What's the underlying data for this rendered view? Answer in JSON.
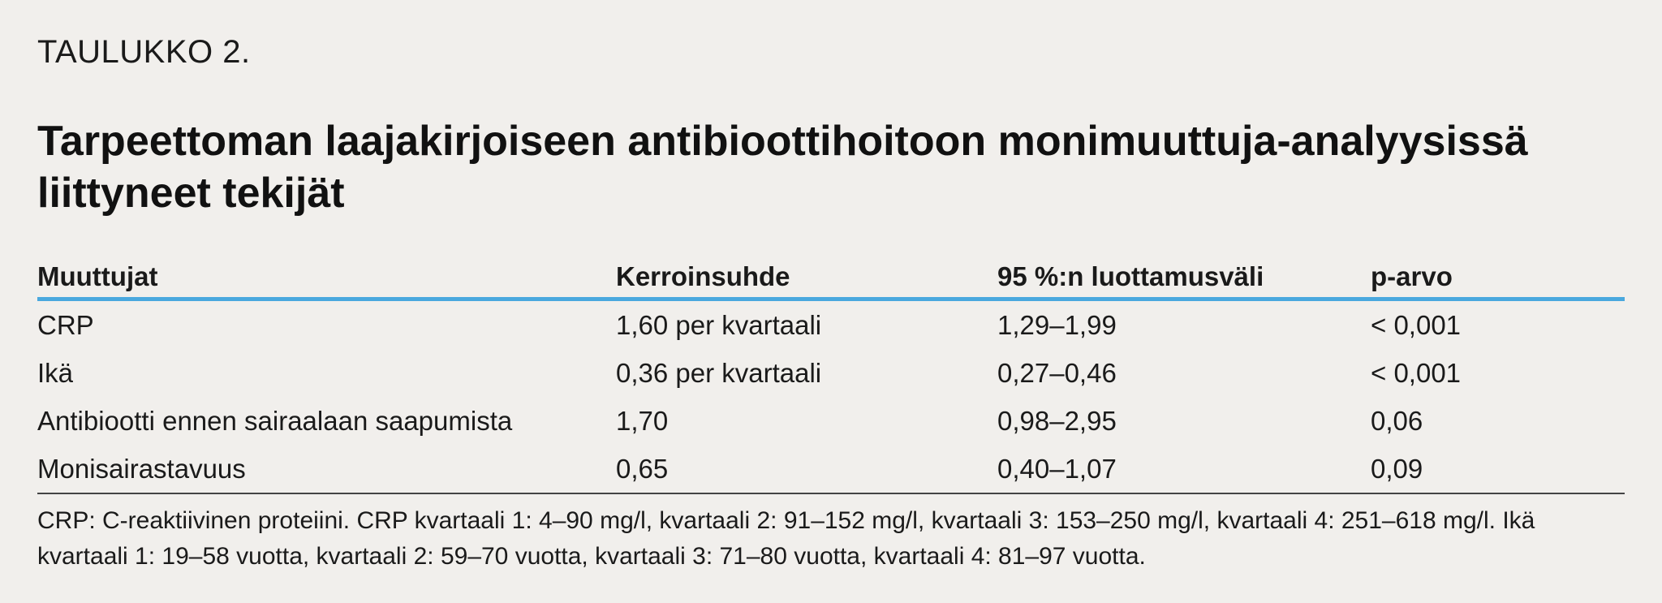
{
  "table_label": "TAULUKKO 2.",
  "title": "Tarpeettoman laajakirjoiseen antibioottihoitoon monimuuttuja-analyysissä liittyneet tekijät",
  "columns": [
    "Muuttujat",
    "Kerroinsuhde",
    "95 %:n luottamusväli",
    "p-arvo"
  ],
  "rows": [
    [
      "CRP",
      "1,60 per kvartaali",
      "1,29–1,99",
      "< 0,001"
    ],
    [
      "Ikä",
      "0,36 per kvartaali",
      "0,27–0,46",
      "< 0,001"
    ],
    [
      "Antibiootti ennen sairaalaan saapumista",
      "1,70",
      "0,98–2,95",
      "0,06"
    ],
    [
      "Monisairastavuus",
      "0,65",
      "0,40–1,07",
      "0,09"
    ]
  ],
  "footnote": "CRP: C-reaktiivinen proteiini. CRP kvartaali 1: 4–90 mg/l, kvartaali 2: 91–152 mg/l, kvartaali 3: 153–250 mg/l, kvartaali 4: 251–618 mg/l. Ikä kvartaali 1: 19–58 vuotta, kvartaali 2: 59–70 vuotta, kvartaali 3: 71–80 vuotta, kvartaali 4: 81–97 vuotta.",
  "colors": {
    "background": "#f1efec",
    "header_rule": "#4aa8de",
    "text": "#1a1a1a"
  }
}
